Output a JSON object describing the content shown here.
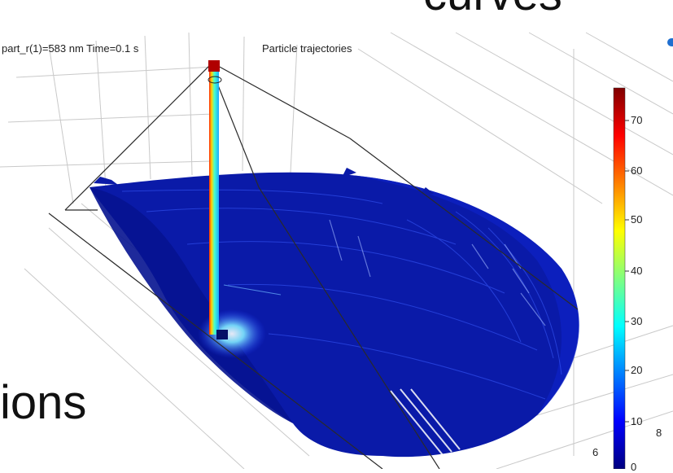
{
  "slide": {
    "title_fragment": "curves",
    "body_fragment": "ions"
  },
  "plot": {
    "subtitle": "part_r(1)=583 nm Time=0.1 s",
    "title": "Particle trajectories",
    "colorbar": {
      "ticks": [
        "70",
        "60",
        "50",
        "40",
        "30",
        "20",
        "10",
        "0"
      ],
      "range": [
        0,
        77
      ],
      "colormap": "jet"
    },
    "axis_ticks": [
      "6",
      "8"
    ]
  },
  "colors": {
    "trajectory_blue": "#0a1aa8",
    "trajectory_dark": "#050f7a",
    "accent_blue": "#1f6fd0"
  }
}
